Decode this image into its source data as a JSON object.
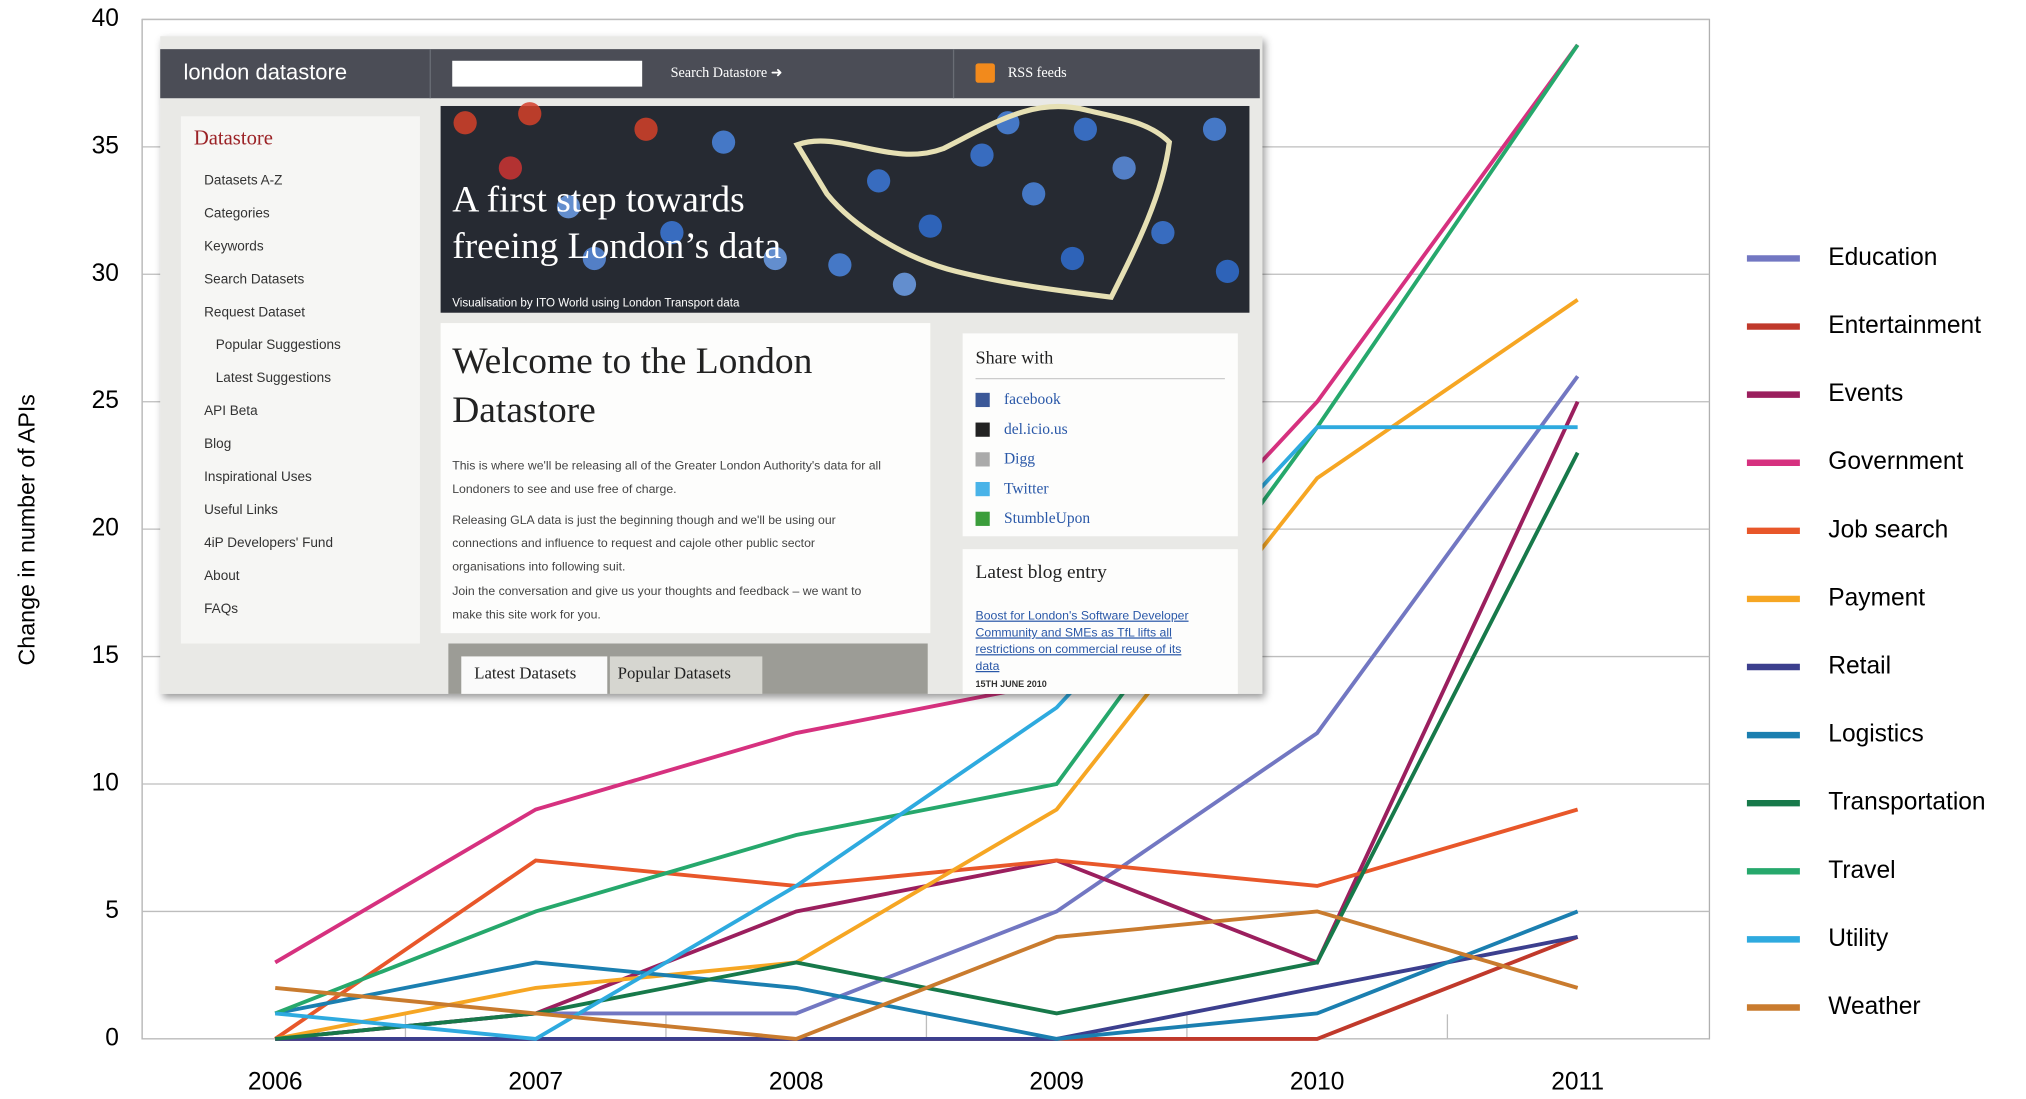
{
  "chart_data": {
    "type": "line",
    "y_axis_label": "Change in number of APIs",
    "categories": [
      "2006",
      "2007",
      "2008",
      "2009",
      "2010",
      "2011"
    ],
    "ylim": [
      0,
      40
    ],
    "yticks": [
      0,
      5,
      10,
      15,
      20,
      25,
      30,
      35,
      40
    ],
    "grid": true,
    "legend": "right",
    "series": [
      {
        "name": "Education",
        "color": "#7277c2",
        "values": [
          0,
          1,
          1,
          5,
          12,
          26
        ]
      },
      {
        "name": "Entertainment",
        "color": "#c0392b",
        "values": [
          0,
          0,
          0,
          0,
          0,
          4
        ]
      },
      {
        "name": "Events",
        "color": "#9b1f5e",
        "values": [
          0,
          1,
          5,
          7,
          3,
          25
        ]
      },
      {
        "name": "Government",
        "color": "#d6317f",
        "values": [
          3,
          9,
          12,
          14,
          25,
          39
        ]
      },
      {
        "name": "Job search",
        "color": "#e8572a",
        "values": [
          0,
          7,
          6,
          7,
          6,
          9
        ]
      },
      {
        "name": "Payment",
        "color": "#f6a623",
        "values": [
          0,
          2,
          3,
          9,
          22,
          29
        ]
      },
      {
        "name": "Retail",
        "color": "#3c3f8e",
        "values": [
          0,
          0,
          0,
          0,
          2,
          4
        ]
      },
      {
        "name": "Logistics",
        "color": "#1b7fb0",
        "values": [
          1,
          3,
          2,
          0,
          1,
          5
        ]
      },
      {
        "name": "Transportation",
        "color": "#17794a",
        "values": [
          0,
          1,
          3,
          1,
          3,
          23
        ]
      },
      {
        "name": "Travel",
        "color": "#26a86c",
        "values": [
          1,
          5,
          8,
          10,
          24,
          39
        ]
      },
      {
        "name": "Utility",
        "color": "#2eaadf",
        "values": [
          1,
          0,
          6,
          13,
          24,
          24
        ]
      },
      {
        "name": "Weather",
        "color": "#c97b2e",
        "values": [
          2,
          1,
          0,
          4,
          5,
          2
        ]
      }
    ]
  },
  "inset": {
    "header": {
      "logo": "london datastore",
      "search_button": "Search Datastore ➜",
      "rss": "RSS feeds"
    },
    "sidebar": {
      "title": "Datastore",
      "items": [
        "Datasets A-Z",
        "Categories",
        "Keywords",
        "Search Datasets",
        "Request Dataset",
        "Popular Suggestions",
        "Latest Suggestions",
        "API Beta",
        "Blog",
        "Inspirational Uses",
        "Useful Links",
        "4iP Developers' Fund",
        "About",
        "FAQs"
      ]
    },
    "banner": {
      "headline": [
        "A first step towards",
        "freeing London’s data"
      ],
      "caption": "Visualisation by ITO World using London Transport data"
    },
    "welcome": {
      "title": [
        "Welcome to the London",
        "Datastore"
      ],
      "lines": [
        "This is where we'll be releasing all of the Greater London Authority's data for all",
        "Londoners to see and use free of charge.",
        "Releasing GLA data is just the beginning though and we'll be using our",
        "connections and influence to request and cajole other public sector",
        "organisations into following suit.",
        "Join the conversation and give us your thoughts and feedback – we want to",
        "make this site work for you."
      ]
    },
    "tabs": [
      "Latest Datasets",
      "Popular Datasets"
    ],
    "share": {
      "title": "Share with",
      "items": [
        "facebook",
        "del.icio.us",
        "Digg",
        "Twitter",
        "StumbleUpon"
      ]
    },
    "blog": {
      "title": "Latest blog entry",
      "link": [
        "Boost for London's Software Developer",
        "Community and SMEs as TfL lifts all",
        "restrictions on commercial reuse of its",
        "data"
      ],
      "date": "15TH JUNE 2010"
    }
  }
}
